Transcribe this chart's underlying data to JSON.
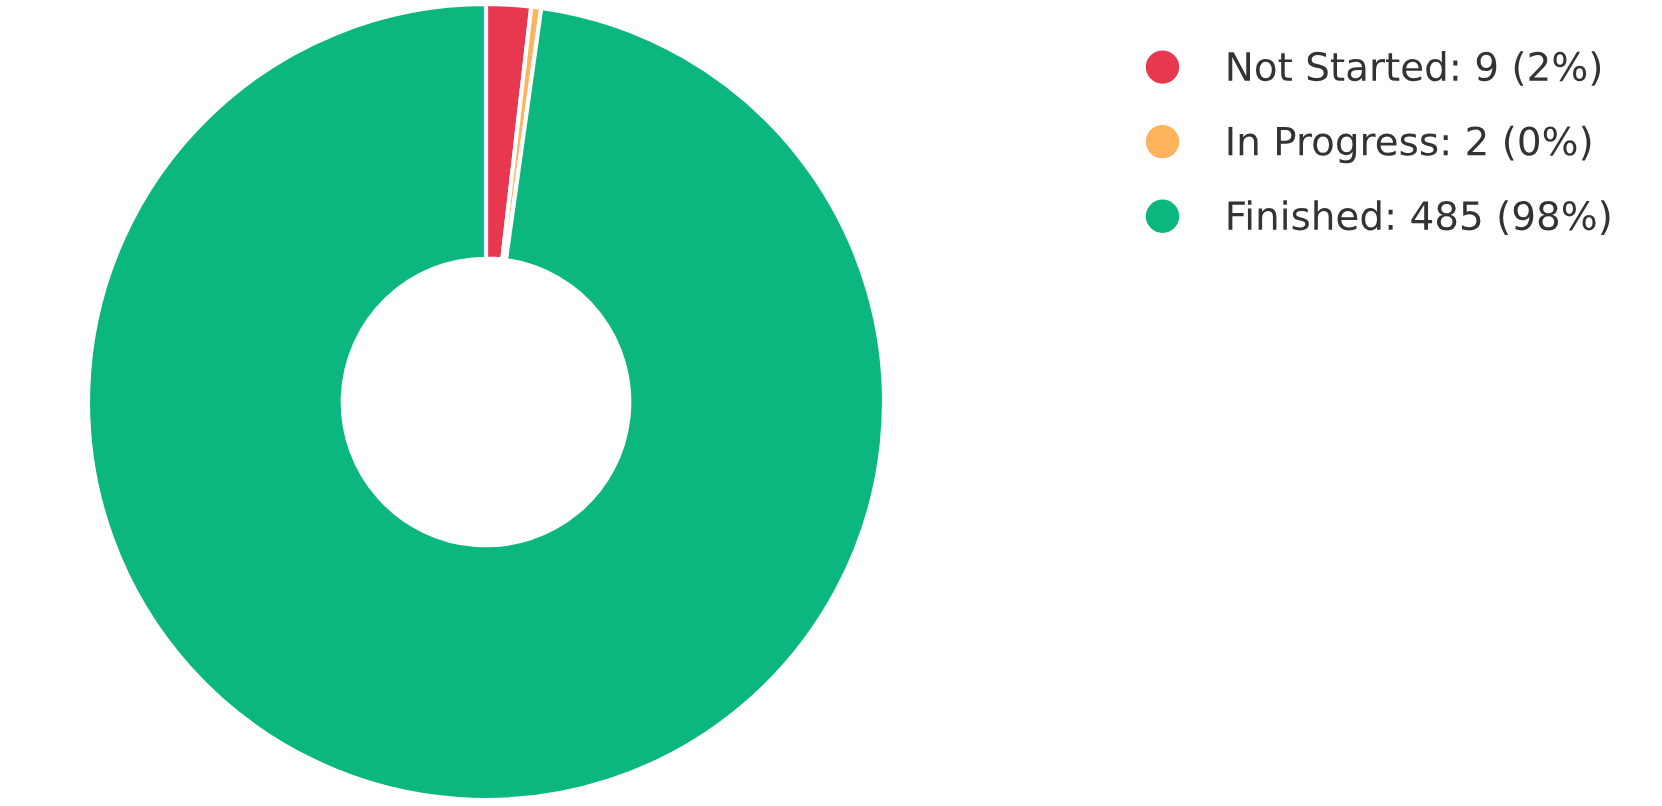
{
  "chart_data": {
    "type": "donut",
    "categories": [
      "Not Started",
      "In Progress",
      "Finished"
    ],
    "values": [
      9,
      2,
      485
    ],
    "value_labels": [
      "9 (2%)",
      "2 (0%)",
      "485 (98%)"
    ],
    "colors": [
      "#e8384f",
      "#fdb45c",
      "#0bb77e"
    ],
    "legend": "top right"
  }
}
